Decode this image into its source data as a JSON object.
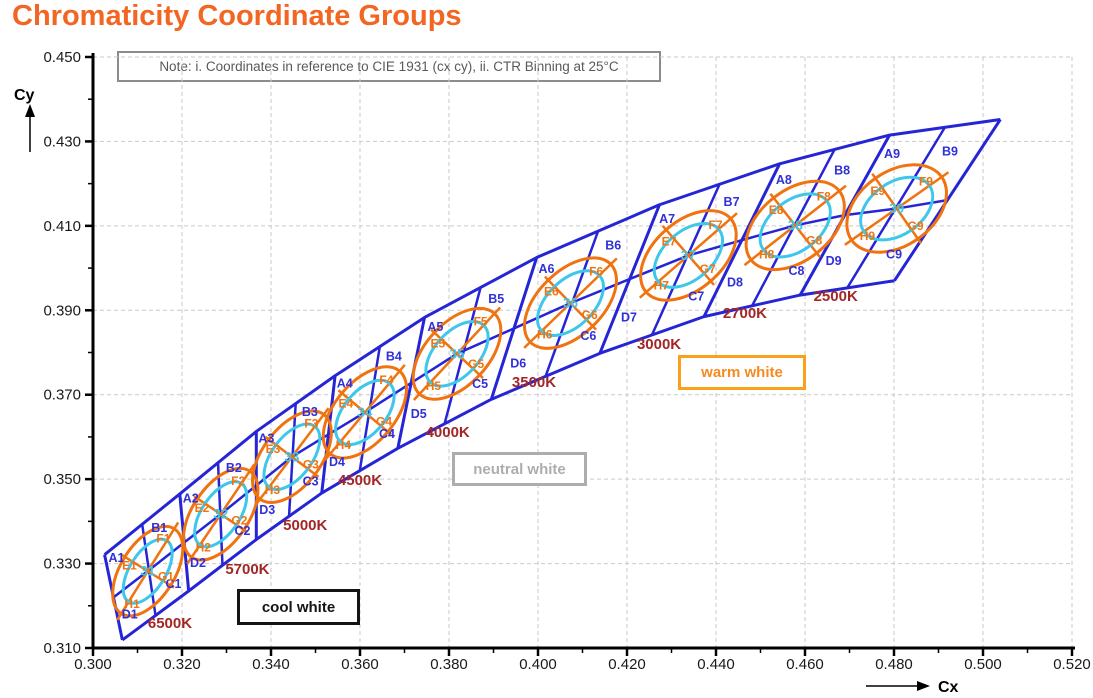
{
  "title": "Chromaticity Coordinate Groups",
  "note": "Note: i. Coordinates in reference to CIE 1931 (cx cy), ii. CTR Binning at 25°C",
  "regions": {
    "cool": "cool white",
    "neutral": "neutral white",
    "warm": "warm white"
  },
  "colors": {
    "title": "#F26522",
    "bin_lines": "#2525D6",
    "bin_labels": "#3030D8",
    "ellipse_orange": "#F0730F",
    "ellipse_cyan": "#3EC7EA",
    "cct_labels": "#A32626",
    "grid": "#CACACA",
    "axis": "#000000",
    "note_text": "#595959"
  },
  "axes": {
    "x": {
      "label": "Cx",
      "min": 0.3,
      "max": 0.52,
      "major_ticks": [
        0.3,
        0.32,
        0.34,
        0.36,
        0.38,
        0.4,
        0.42,
        0.44,
        0.46,
        0.48,
        0.5,
        0.52
      ],
      "tick_labels": [
        "0.300",
        "0.320",
        "0.340",
        "0.360",
        "0.380",
        "0.400",
        "0.420",
        "0.440",
        "0.460",
        "0.480",
        "0.500",
        "0.520"
      ],
      "minor_ticks": [
        0.31,
        0.33,
        0.35,
        0.37,
        0.39,
        0.41,
        0.43,
        0.45,
        0.47,
        0.49,
        0.51
      ]
    },
    "y": {
      "label": "Cy",
      "min": 0.31,
      "max": 0.45,
      "major_ticks": [
        0.31,
        0.33,
        0.35,
        0.37,
        0.39,
        0.41,
        0.43,
        0.45
      ],
      "tick_labels": [
        "0.310",
        "0.330",
        "0.350",
        "0.370",
        "0.390",
        "0.410",
        "0.430",
        "0.450"
      ],
      "minor_ticks": [
        0.32,
        0.34,
        0.36,
        0.38,
        0.4,
        0.42,
        0.44
      ]
    }
  },
  "chart_data": {
    "type": "other",
    "subtype": "chromaticity-binning-map",
    "title": "Chromaticity Coordinate Groups",
    "xlabel": "Cx",
    "ylabel": "Cy",
    "xlim": [
      0.3,
      0.52
    ],
    "ylim": [
      0.31,
      0.45
    ],
    "grid": "dashed",
    "groups": [
      {
        "group": "31",
        "cct": "6500K",
        "center": {
          "cx": 0.3123,
          "cy": 0.3282
        },
        "cct_label_pos": {
          "cx": 0.3173,
          "cy": 0.3159
        },
        "bins_outer": [
          "A1",
          "B1",
          "C1",
          "D1"
        ],
        "bins_ellipse": [
          "E1",
          "F1",
          "G1",
          "H1"
        ],
        "ellipse": {
          "angle_deg": -58,
          "outer_a": 50,
          "outer_b": 27,
          "inner_a": 36,
          "inner_b": 18
        }
      },
      {
        "group": "32",
        "cct": "5700K",
        "center": {
          "cx": 0.3287,
          "cy": 0.3417
        },
        "cct_label_pos": {
          "cx": 0.3347,
          "cy": 0.3287
        },
        "bins_outer": [
          "A2",
          "B2",
          "C2",
          "D2"
        ],
        "bins_ellipse": [
          "E2",
          "F2",
          "G2",
          "H2"
        ],
        "ellipse": {
          "angle_deg": -56,
          "outer_a": 52,
          "outer_b": 28,
          "inner_a": 37,
          "inner_b": 19
        }
      },
      {
        "group": "33",
        "cct": "5000K",
        "center": {
          "cx": 0.3447,
          "cy": 0.3553
        },
        "cct_label_pos": {
          "cx": 0.3477,
          "cy": 0.3391
        },
        "bins_outer": [
          "A3",
          "B3",
          "C3",
          "D3"
        ],
        "bins_ellipse": [
          "E3",
          "F3",
          "G3",
          "H3"
        ],
        "ellipse": {
          "angle_deg": -53,
          "outer_a": 53,
          "outer_b": 29,
          "inner_a": 38,
          "inner_b": 20
        }
      },
      {
        "group": "34",
        "cct": "4500K",
        "center": {
          "cx": 0.3611,
          "cy": 0.3658
        },
        "cct_label_pos": {
          "cx": 0.36,
          "cy": 0.3498
        },
        "bins_outer": [
          "A4",
          "B4",
          "C4",
          "D4"
        ],
        "bins_ellipse": [
          "E4",
          "F4",
          "G4",
          "H4"
        ],
        "ellipse": {
          "angle_deg": -50,
          "outer_a": 54,
          "outer_b": 30,
          "inner_a": 38,
          "inner_b": 21
        }
      },
      {
        "group": "35",
        "cct": "4000K",
        "center": {
          "cx": 0.3818,
          "cy": 0.3797
        },
        "cct_label_pos": {
          "cx": 0.3797,
          "cy": 0.3612
        },
        "bins_outer": [
          "A5",
          "B5",
          "C5",
          "D5"
        ],
        "bins_ellipse": [
          "E5",
          "F5",
          "G5",
          "H5"
        ],
        "ellipse": {
          "angle_deg": -47,
          "outer_a": 55,
          "outer_b": 31,
          "inner_a": 39,
          "inner_b": 22
        }
      },
      {
        "group": "36",
        "cct": "3500K",
        "center": {
          "cx": 0.4073,
          "cy": 0.3917
        },
        "cct_label_pos": {
          "cx": 0.3991,
          "cy": 0.373
        },
        "bins_outer": [
          "A6",
          "B6",
          "C6",
          "D6"
        ],
        "bins_ellipse": [
          "E6",
          "F6",
          "G6",
          "H6"
        ],
        "ellipse": {
          "angle_deg": -44,
          "outer_a": 56,
          "outer_b": 32,
          "inner_a": 40,
          "inner_b": 23
        }
      },
      {
        "group": "37",
        "cct": "3000K",
        "center": {
          "cx": 0.4338,
          "cy": 0.403
        },
        "cct_label_pos": {
          "cx": 0.4272,
          "cy": 0.382
        },
        "bins_outer": [
          "A7",
          "B7",
          "C7",
          "D7"
        ],
        "bins_ellipse": [
          "E7",
          "F7",
          "G7",
          "H7"
        ],
        "ellipse": {
          "angle_deg": -41,
          "outer_a": 56,
          "outer_b": 34,
          "inner_a": 40,
          "inner_b": 24
        }
      },
      {
        "group": "38",
        "cct": "2700K",
        "center": {
          "cx": 0.4578,
          "cy": 0.4101
        },
        "cct_label_pos": {
          "cx": 0.4465,
          "cy": 0.3893
        },
        "bins_outer": [
          "A8",
          "B8",
          "C8",
          "D8"
        ],
        "bins_ellipse": [
          "E8",
          "F8",
          "G8",
          "H8"
        ],
        "ellipse": {
          "angle_deg": -38,
          "outer_a": 56,
          "outer_b": 35,
          "inner_a": 40,
          "inner_b": 25
        }
      },
      {
        "group": "39",
        "cct": "2500K",
        "center": {
          "cx": 0.4806,
          "cy": 0.4141
        },
        "cct_label_pos": {
          "cx": 0.4669,
          "cy": 0.3934
        },
        "bins_outer": [
          "A9",
          "B9",
          "C9",
          "D9"
        ],
        "bins_ellipse": [
          "E9",
          "F9",
          "G9",
          "H9"
        ],
        "ellipse": {
          "angle_deg": -35,
          "outer_a": 55,
          "outer_b": 37,
          "inner_a": 40,
          "inner_b": 26
        }
      }
    ],
    "bin_boundaries": [
      {
        "top": [
          0.3026,
          0.3321
        ],
        "bottom": [
          0.3066,
          0.3119
        ]
      },
      {
        "top": [
          0.3195,
          0.3465
        ],
        "bottom": [
          0.3215,
          0.3235
        ]
      },
      {
        "top": [
          0.3367,
          0.3613
        ],
        "bottom": [
          0.3367,
          0.3357
        ]
      },
      {
        "top": [
          0.3544,
          0.3745
        ],
        "bottom": [
          0.3514,
          0.3467
        ]
      },
      {
        "top": [
          0.3745,
          0.3883
        ],
        "bottom": [
          0.3685,
          0.3573
        ]
      },
      {
        "top": [
          0.3997,
          0.4025
        ],
        "bottom": [
          0.3895,
          0.3689
        ]
      },
      {
        "top": [
          0.4273,
          0.415
        ],
        "bottom": [
          0.4139,
          0.3798
        ]
      },
      {
        "top": [
          0.4543,
          0.4247
        ],
        "bottom": [
          0.4373,
          0.3885
        ]
      },
      {
        "top": [
          0.479,
          0.4315
        ],
        "bottom": [
          0.4589,
          0.3936
        ]
      },
      {
        "top": [
          0.5039,
          0.4352
        ],
        "bottom": [
          0.4801,
          0.397
        ]
      }
    ]
  }
}
